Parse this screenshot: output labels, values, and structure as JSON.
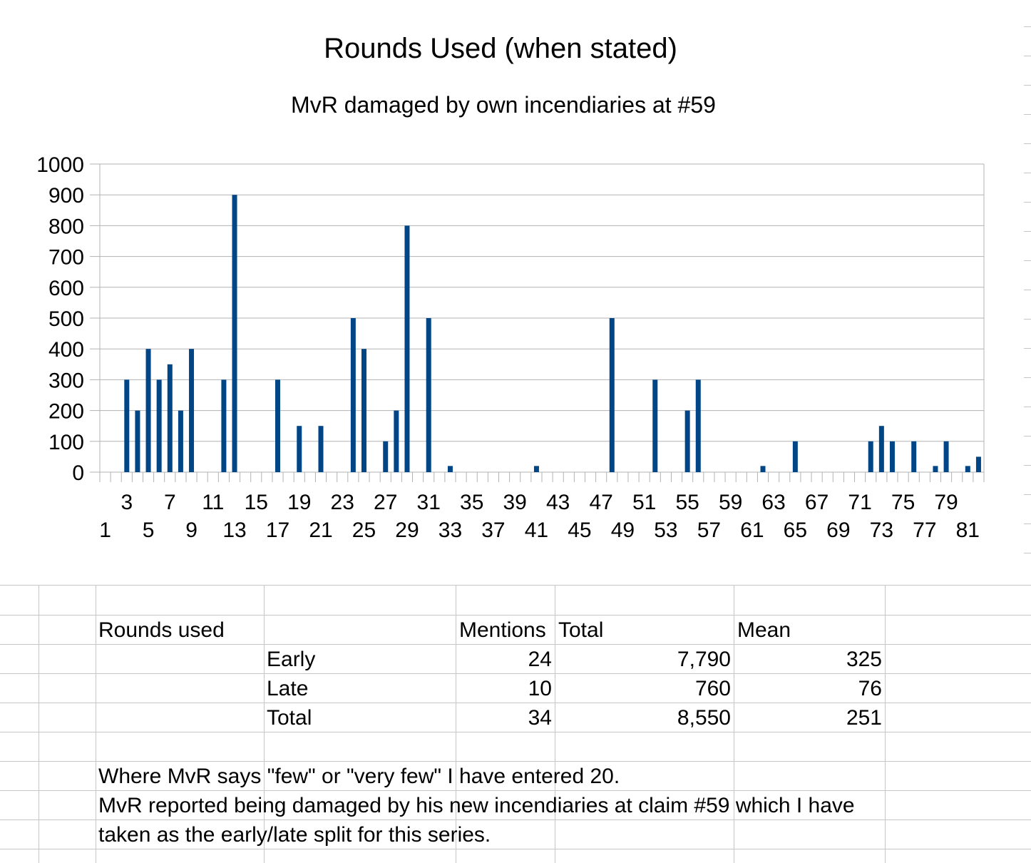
{
  "chart_data": {
    "type": "bar",
    "title": "Rounds Used (when stated)",
    "subtitle": "MvR damaged by own incendiaries at #59",
    "xlabel": "",
    "ylabel": "",
    "ylim": [
      0,
      1000
    ],
    "yticks": [
      0,
      100,
      200,
      300,
      400,
      500,
      600,
      700,
      800,
      900,
      1000
    ],
    "grid": true,
    "legend": "none",
    "bar_color": "#004586",
    "x_tick_labels": [
      "1",
      "3",
      "5",
      "7",
      "9",
      "11",
      "13",
      "15",
      "17",
      "19",
      "21",
      "23",
      "25",
      "27",
      "29",
      "31",
      "33",
      "35",
      "37",
      "39",
      "41",
      "43",
      "45",
      "47",
      "49",
      "51",
      "53",
      "55",
      "57",
      "59",
      "61",
      "63",
      "65",
      "67",
      "69",
      "71",
      "73",
      "75",
      "77",
      "79",
      "81"
    ],
    "categories": [
      "1",
      "2",
      "3",
      "4",
      "5",
      "6",
      "7",
      "8",
      "9",
      "10",
      "11",
      "12",
      "13",
      "14",
      "15",
      "16",
      "17",
      "18",
      "19",
      "20",
      "21",
      "22",
      "23",
      "24",
      "25",
      "26",
      "27",
      "28",
      "29",
      "30",
      "31",
      "32",
      "33",
      "34",
      "35",
      "36",
      "37",
      "38",
      "39",
      "40",
      "41",
      "42",
      "43",
      "44",
      "45",
      "46",
      "47",
      "48",
      "49",
      "50",
      "51",
      "52",
      "53",
      "54",
      "55",
      "56",
      "57",
      "58",
      "59",
      "60",
      "61",
      "62",
      "63",
      "64",
      "65",
      "66",
      "67",
      "68",
      "69",
      "70",
      "71",
      "72",
      "73",
      "74",
      "75",
      "76",
      "77",
      "78",
      "79",
      "80",
      "81",
      "82"
    ],
    "values": [
      0,
      0,
      300,
      200,
      400,
      300,
      350,
      200,
      400,
      0,
      0,
      300,
      900,
      0,
      0,
      0,
      300,
      0,
      150,
      0,
      150,
      0,
      0,
      500,
      400,
      0,
      100,
      200,
      800,
      0,
      500,
      0,
      20,
      0,
      0,
      0,
      0,
      0,
      0,
      0,
      20,
      0,
      0,
      0,
      0,
      0,
      0,
      500,
      0,
      0,
      0,
      300,
      0,
      0,
      200,
      300,
      0,
      0,
      0,
      0,
      0,
      20,
      0,
      0,
      100,
      0,
      0,
      0,
      0,
      0,
      0,
      100,
      150,
      100,
      0,
      100,
      0,
      20,
      100,
      0,
      20,
      50
    ]
  },
  "table": {
    "header_label": "Rounds used",
    "col_mentions": "Mentions",
    "col_total": "Total",
    "col_mean": "Mean",
    "rows": [
      {
        "label": "Early",
        "mentions": "24",
        "total": "7,790",
        "mean": "325"
      },
      {
        "label": "Late",
        "mentions": "10",
        "total": "760",
        "mean": "76"
      },
      {
        "label": "Total",
        "mentions": "34",
        "total": "8,550",
        "mean": "251"
      }
    ]
  },
  "notes": [
    "Where MvR says \"few\" or \"very few\" I have entered 20.",
    "MvR reported being damaged by his new incendiaries at claim #59 which I have",
    "taken as the early/late split for this series."
  ]
}
